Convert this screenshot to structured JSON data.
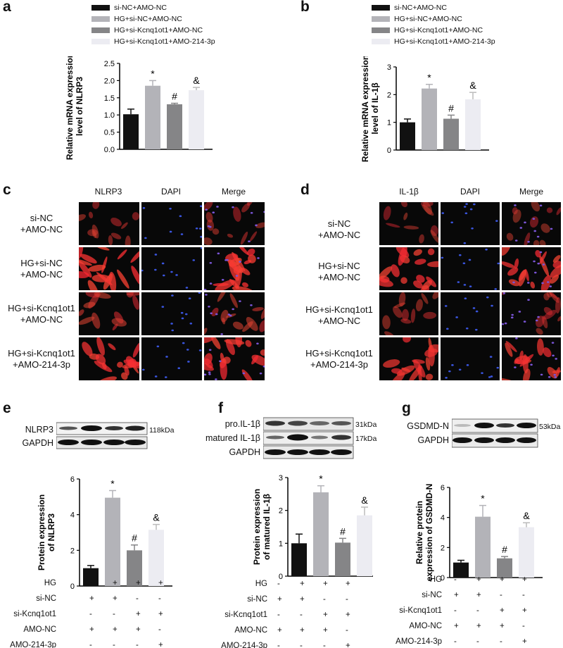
{
  "panel_letters": {
    "a": "a",
    "b": "b",
    "c": "c",
    "d": "d",
    "e": "e",
    "f": "f",
    "g": "g"
  },
  "colors": {
    "black": "#111111",
    "gray_light": "#b3b3b8",
    "gray_mid": "#858587",
    "pale": "#ececf2"
  },
  "legend_a": [
    "si-NC+AMO-NC",
    "HG+si-NC+AMO-NC",
    "HG+si-Kcnq1ot1+AMO-NC",
    "HG+si-Kcnq1ot1+AMO-214-3p"
  ],
  "legend_b": [
    "si-NC+AMO-NC",
    "HG+si-NC+AMO-NC",
    "HG+si-Kcnq1ot1+AMO-NC",
    "HG+si-Kcnq1ot1+AMO-214-3p"
  ],
  "chart_data": [
    {
      "id": "a",
      "type": "bar",
      "ylabel": [
        "Relative mRNA expression",
        "level of NLRP3"
      ],
      "ylim": [
        0,
        2.5
      ],
      "yticks": [
        "0.0",
        "0.5",
        "1.0",
        "1.5",
        "2.0",
        "2.5"
      ],
      "values": [
        1.02,
        1.85,
        1.31,
        1.72
      ],
      "errors": [
        0.15,
        0.15,
        0.03,
        0.08
      ],
      "marks": [
        "",
        "*",
        "#",
        "&"
      ]
    },
    {
      "id": "b",
      "type": "bar",
      "ylabel": [
        "Relative mRNA expression",
        "level of IL-1β"
      ],
      "ylim": [
        0,
        3
      ],
      "yticks": [
        "0",
        "1",
        "2",
        "3"
      ],
      "values": [
        1.0,
        2.22,
        1.13,
        1.83
      ],
      "errors": [
        0.12,
        0.15,
        0.13,
        0.25
      ],
      "marks": [
        "",
        "*",
        "#",
        "&"
      ]
    },
    {
      "id": "e",
      "type": "bar",
      "ylabel": [
        "Protein expression",
        "of NLRP3"
      ],
      "ylim": [
        0,
        6
      ],
      "yticks": [
        "0",
        "2",
        "4",
        "6"
      ],
      "values": [
        1.0,
        4.95,
        2.0,
        3.15
      ],
      "errors": [
        0.15,
        0.4,
        0.3,
        0.3
      ],
      "marks": [
        "",
        "*",
        "#",
        "&"
      ]
    },
    {
      "id": "f",
      "type": "bar",
      "ylabel": [
        "Protein expression",
        "of matured IL-1β"
      ],
      "ylim": [
        0,
        3
      ],
      "yticks": [
        "0",
        "1",
        "2",
        "3"
      ],
      "values": [
        1.0,
        2.55,
        1.02,
        1.85
      ],
      "errors": [
        0.28,
        0.2,
        0.13,
        0.25
      ],
      "marks": [
        "",
        "*",
        "#",
        "&"
      ]
    },
    {
      "id": "g",
      "type": "bar",
      "ylabel": [
        "Relative protein",
        "expression of GSDMD-N"
      ],
      "ylim": [
        0,
        6
      ],
      "yticks": [
        "0",
        "2",
        "4",
        "6"
      ],
      "values": [
        1.0,
        4.05,
        1.28,
        3.35
      ],
      "errors": [
        0.15,
        0.75,
        0.12,
        0.3
      ],
      "marks": [
        "",
        "*",
        "#",
        "&"
      ]
    }
  ],
  "micro_c": {
    "cols": [
      "NLRP3",
      "DAPI",
      "Merge"
    ],
    "rows": [
      [
        "si-NC",
        "+AMO-NC"
      ],
      [
        "HG+si-NC",
        "+AMO-NC"
      ],
      [
        "HG+si-Kcnq1ot1",
        "+AMO-NC"
      ],
      [
        "HG+si-Kcnq1ot1",
        "+AMO-214-3p"
      ]
    ]
  },
  "micro_d": {
    "cols": [
      "IL-1β",
      "DAPI",
      "Merge"
    ],
    "rows": [
      [
        "si-NC",
        "+AMO-NC"
      ],
      [
        "HG+si-NC",
        "+AMO-NC"
      ],
      [
        "HG+si-Kcnq1ot1",
        "+AMO-NC"
      ],
      [
        "HG+si-Kcnq1ot1",
        "+AMO-214-3p"
      ]
    ]
  },
  "blot_e": {
    "rows": [
      "NLRP3",
      "GAPDH"
    ],
    "kda": [
      "118kDa",
      ""
    ]
  },
  "blot_f": {
    "rows": [
      "pro.IL-1β",
      "matured IL-1β",
      "GAPDH"
    ],
    "kda": [
      "31kDa",
      "17kDa",
      ""
    ]
  },
  "blot_g": {
    "rows": [
      "GSDMD-N",
      "GAPDH"
    ],
    "kda": [
      "53kDa",
      ""
    ]
  },
  "treatment": {
    "labels": [
      "HG",
      "si-NC",
      "si-Kcnq1ot1",
      "AMO-NC",
      "AMO-214-3p"
    ],
    "signs": [
      [
        "-",
        "+",
        "+",
        "+"
      ],
      [
        "+",
        "+",
        "-",
        "-"
      ],
      [
        "-",
        "-",
        "+",
        "+"
      ],
      [
        "+",
        "+",
        "+",
        "-"
      ],
      [
        "-",
        "-",
        "-",
        "+"
      ]
    ]
  }
}
